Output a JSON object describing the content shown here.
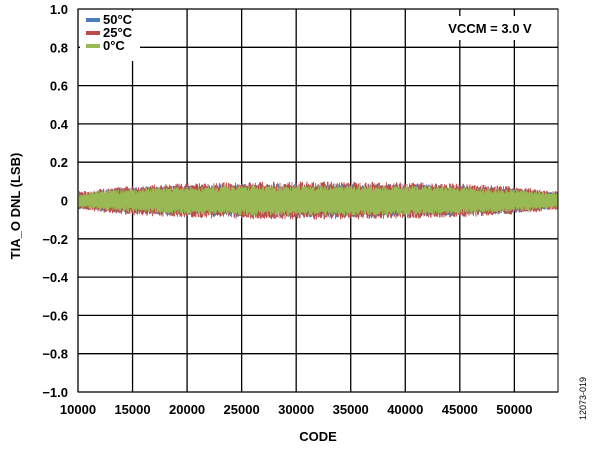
{
  "chart_data": {
    "type": "scatter",
    "title": "",
    "xlabel": "CODE",
    "ylabel": "TIA_O DNL (LSB)",
    "xlim": [
      10000,
      54000
    ],
    "ylim": [
      -1.0,
      1.0
    ],
    "x_ticks": [
      10000,
      15000,
      20000,
      25000,
      30000,
      35000,
      40000,
      45000,
      50000
    ],
    "x_tick_labels": [
      "10000",
      "15000",
      "20000",
      "25000",
      "30000",
      "35000",
      "40000",
      "45000",
      "50000"
    ],
    "y_ticks": [
      -1.0,
      -0.8,
      -0.6,
      -0.4,
      -0.2,
      0,
      0.2,
      0.4,
      0.6,
      0.8,
      1.0
    ],
    "y_tick_labels": [
      "−1.0",
      "−0.8",
      "−0.6",
      "−0.4",
      "−0.2",
      "0",
      "0.2",
      "0.4",
      "0.6",
      "0.8",
      "1.0"
    ],
    "grid": true,
    "legend_position": "top-left",
    "annotation": "VCCM = 3.0 V",
    "series": [
      {
        "name": "50°C",
        "color": "#4a7ebb",
        "x_range": [
          10000,
          54000
        ],
        "envelope": [
          -0.09,
          0.09
        ]
      },
      {
        "name": "25°C",
        "color": "#be4b48",
        "x_range": [
          10000,
          54000
        ],
        "envelope": [
          -0.1,
          0.1
        ]
      },
      {
        "name": "0°C",
        "color": "#98b954",
        "x_range": [
          10000,
          54000
        ],
        "envelope": [
          -0.08,
          0.08
        ]
      }
    ]
  },
  "figure_id": "12073-019"
}
